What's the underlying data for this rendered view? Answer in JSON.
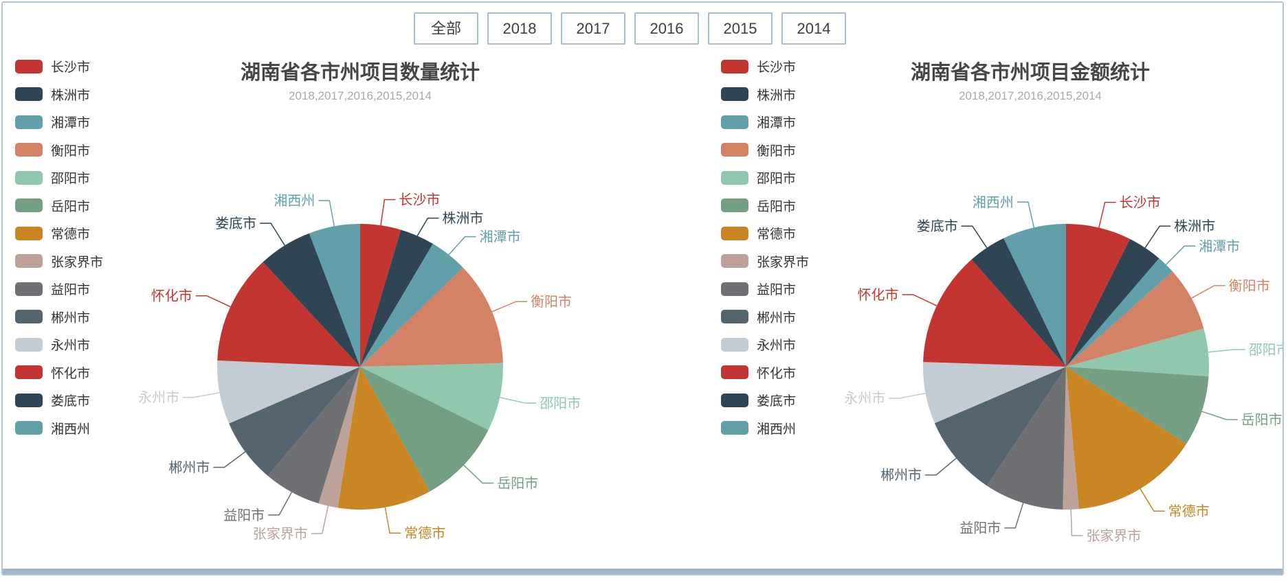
{
  "page": {
    "background": "#ffffff",
    "border_color": "#aec4d8",
    "bottom_bar_color": "#a2b6c8"
  },
  "filter_buttons": [
    "全部",
    "2018",
    "2017",
    "2016",
    "2015",
    "2014"
  ],
  "palette": [
    "#c23531",
    "#2f4554",
    "#61a0a8",
    "#d48265",
    "#91c7ae",
    "#749f83",
    "#ca8622",
    "#bda29a",
    "#6e7074",
    "#546570",
    "#c4ccd3",
    "#c23531",
    "#2f4554",
    "#61a0a8"
  ],
  "chart_data": [
    {
      "type": "pie",
      "title": "湖南省各市州项目数量统计",
      "subtitle": "2018,2017,2016,2015,2014",
      "legend_position": "left",
      "start_angle_deg": 0,
      "direction": "clockwise",
      "categories": [
        "长沙市",
        "株洲市",
        "湘潭市",
        "衡阳市",
        "邵阳市",
        "岳阳市",
        "常德市",
        "张家界市",
        "益阳市",
        "郴州市",
        "永州市",
        "怀化市",
        "娄底市",
        "湘西州"
      ],
      "values": [
        4.6,
        3.9,
        4.3,
        11.8,
        7.7,
        9.6,
        10.6,
        2.2,
        6.5,
        7.3,
        7.2,
        12.4,
        6.1,
        5.8
      ],
      "values_are": "percent_share_estimated_from_slice_angles"
    },
    {
      "type": "pie",
      "title": "湖南省各市州项目金额统计",
      "subtitle": "2018,2017,2016,2015,2014",
      "legend_position": "left",
      "start_angle_deg": 0,
      "direction": "clockwise",
      "categories": [
        "长沙市",
        "株洲市",
        "湘潭市",
        "衡阳市",
        "邵阳市",
        "岳阳市",
        "常德市",
        "张家界市",
        "益阳市",
        "郴州市",
        "永州市",
        "怀化市",
        "娄底市",
        "湘西州"
      ],
      "values": [
        7.4,
        3.9,
        2.1,
        7.3,
        5.4,
        8.0,
        14.5,
        1.8,
        9.0,
        9.2,
        7.0,
        13.0,
        4.3,
        7.2
      ],
      "values_are": "percent_share_estimated_from_slice_angles"
    }
  ]
}
